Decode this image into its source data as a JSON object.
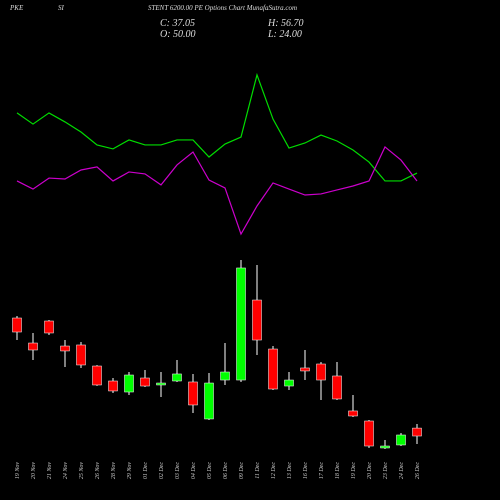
{
  "chart_data": {
    "type": "candlestick",
    "title_parts": [
      "PKE",
      "SI",
      "STENT 6200.00 PE Options Chart MunafaSutra.com"
    ],
    "ohlc_labels": [
      "C: 37.05",
      "H: 56.70",
      "O: 50.00",
      "L: 24.00"
    ],
    "categories": [
      "19 Nov",
      "20 Nov",
      "21 Nov",
      "24 Nov",
      "25 Nov",
      "26 Nov",
      "28 Nov",
      "29 Nov",
      "01 Dec",
      "02 Dec",
      "03 Dec",
      "04 Dec",
      "05 Dec",
      "06 Dec",
      "09 Dec",
      "11 Dec",
      "12 Dec",
      "13 Dec",
      "16 Dec",
      "17 Dec",
      "18 Dec",
      "19 Dec",
      "20 Dec",
      "23 Dec",
      "24 Dec",
      "26 Dec"
    ],
    "open": [
      230.0,
      189.1,
      225.1,
      184.2,
      185.9,
      151.5,
      127.0,
      109.0,
      131.9,
      120.5,
      127.0,
      125.4,
      64.9,
      128.6,
      128.6,
      259.4,
      179.3,
      118.8,
      148.3,
      154.8,
      135.2,
      78.0,
      61.6,
      17.5,
      22.4,
      50.0
    ],
    "high": [
      233.3,
      205.5,
      226.7,
      194.0,
      190.8,
      153.0,
      131.9,
      141.7,
      145.0,
      141.7,
      161.3,
      138.5,
      140.1,
      189.1,
      324.8,
      316.7,
      184.2,
      141.7,
      177.7,
      158.1,
      158.1,
      104.1,
      63.2,
      30.5,
      42.0,
      56.7
    ],
    "low": [
      194.0,
      161.3,
      202.2,
      149.9,
      148.3,
      119.0,
      107.4,
      104.1,
      117.2,
      100.8,
      125.4,
      74.7,
      63.2,
      120.5,
      125.4,
      169.5,
      112.3,
      112.3,
      128.6,
      95.9,
      95.9,
      68.1,
      17.5,
      15.9,
      20.7,
      24.0
    ],
    "close": [
      207.1,
      177.7,
      205.5,
      176.1,
      153.2,
      120.5,
      110.7,
      136.8,
      118.8,
      123.7,
      138.5,
      87.8,
      123.7,
      141.7,
      311.8,
      194.0,
      113.9,
      128.6,
      143.4,
      128.6,
      97.6,
      69.8,
      20.7,
      20.7,
      38.7,
      37.05
    ],
    "up_color": "#00ff00",
    "down_color": "#ff0000",
    "ylim": [
      6.0,
      341.2
    ],
    "y2lim": [
      0,
      100
    ],
    "series": [
      {
        "color": "#00dd00",
        "axis": "y2",
        "values": [
          70.6,
          64.4,
          70.6,
          65.6,
          60.0,
          52.8,
          50.6,
          55.6,
          52.8,
          52.8,
          55.6,
          55.6,
          46.1,
          53.3,
          57.2,
          91.7,
          67.2,
          51.1,
          53.9,
          58.3,
          55.0,
          50.0,
          43.3,
          32.8,
          32.8,
          37.2
        ]
      },
      {
        "color": "#cc00cc",
        "axis": "y2",
        "values": [
          32.8,
          28.3,
          34.4,
          33.9,
          38.9,
          40.6,
          32.8,
          37.8,
          36.7,
          30.6,
          41.7,
          48.9,
          33.3,
          28.9,
          3.3,
          18.9,
          31.7,
          28.3,
          25.0,
          25.6,
          27.8,
          30.0,
          32.8,
          51.7,
          44.4,
          32.8
        ]
      }
    ]
  }
}
